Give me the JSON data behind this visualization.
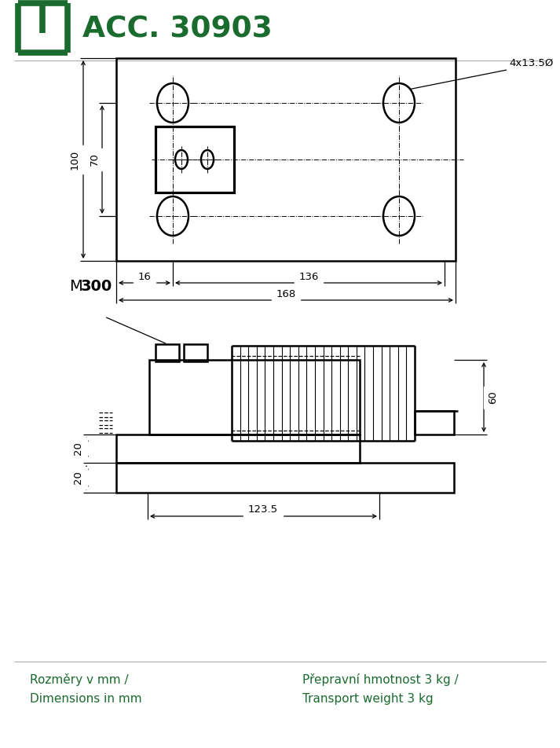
{
  "title": "ACC. 30903",
  "green_color": "#1a6b2e",
  "line_color": "#000000",
  "bg_color": "#ffffff",
  "text_bottom_left": "Rozměry v mm /\nDimensions in mm",
  "text_bottom_right": "Přepravní hmotnost 3 kg /\nTransport weight 3 kg",
  "dim_100": "100",
  "dim_70": "70",
  "dim_16": "16",
  "dim_136": "136",
  "dim_168": "168",
  "dim_hole": "4x13.5Ø",
  "dim_20a": "20",
  "dim_20b": "20",
  "dim_60": "60",
  "dim_1235": "123.5",
  "label_M": "M",
  "label_300": "300"
}
